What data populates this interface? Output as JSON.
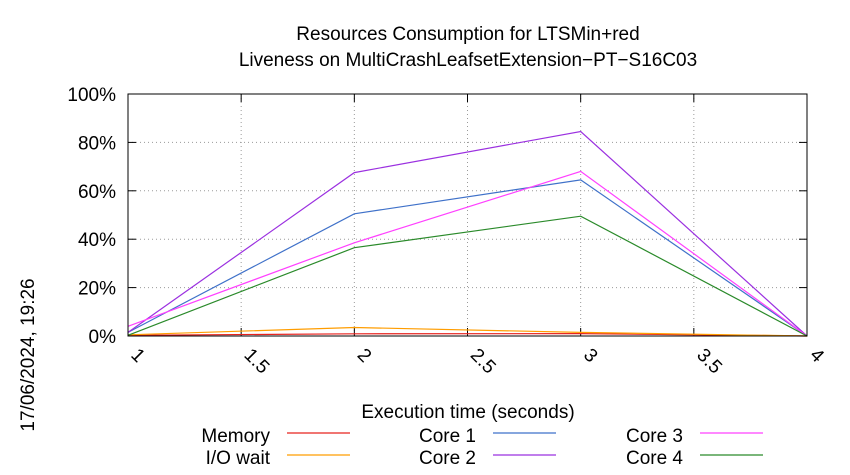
{
  "chart_data": {
    "type": "line",
    "title_line1": "Resources Consumption for LTSMin+red",
    "title_line2": "Liveness on MultiCrashLeafsetExtension−PT−S16C03",
    "xlabel": "Execution time (seconds)",
    "ylabel": "",
    "side_label": "17/06/2024, 19:26",
    "xlim": [
      1,
      4
    ],
    "ylim": [
      0,
      100
    ],
    "x_ticks": [
      {
        "value": 1,
        "label": "1"
      },
      {
        "value": 1.5,
        "label": "1.5"
      },
      {
        "value": 2,
        "label": "2"
      },
      {
        "value": 2.5,
        "label": "2.5"
      },
      {
        "value": 3,
        "label": "3"
      },
      {
        "value": 3.5,
        "label": "3.5"
      },
      {
        "value": 4,
        "label": "4"
      }
    ],
    "y_ticks": [
      {
        "value": 0,
        "label": "0%"
      },
      {
        "value": 20,
        "label": "20%"
      },
      {
        "value": 40,
        "label": "40%"
      },
      {
        "value": 60,
        "label": "60%"
      },
      {
        "value": 80,
        "label": "80%"
      },
      {
        "value": 100,
        "label": "100%"
      }
    ],
    "grid": true,
    "legend_position": "bottom",
    "series": [
      {
        "name": "Memory",
        "color": "#e8231f",
        "x": [
          1,
          2,
          3,
          4
        ],
        "y": [
          0.3,
          0.9,
          1.0,
          0
        ]
      },
      {
        "name": "I/O wait",
        "color": "#ff9d00",
        "x": [
          1,
          2,
          3,
          4
        ],
        "y": [
          0.5,
          3.5,
          1.5,
          0
        ]
      },
      {
        "name": "Core 1",
        "color": "#3f71c9",
        "x": [
          1,
          2,
          3,
          4
        ],
        "y": [
          1.5,
          50.5,
          64.5,
          0
        ]
      },
      {
        "name": "Core 2",
        "color": "#9b30e0",
        "x": [
          1,
          2,
          3,
          4
        ],
        "y": [
          1.5,
          67.5,
          84.5,
          0
        ]
      },
      {
        "name": "Core 3",
        "color": "#ff40ff",
        "x": [
          1,
          2,
          3,
          4
        ],
        "y": [
          4.0,
          38.5,
          68.0,
          0
        ]
      },
      {
        "name": "Core 4",
        "color": "#2a8a2a",
        "x": [
          1,
          2,
          3,
          4
        ],
        "y": [
          0.3,
          36.5,
          49.5,
          0
        ]
      }
    ]
  }
}
